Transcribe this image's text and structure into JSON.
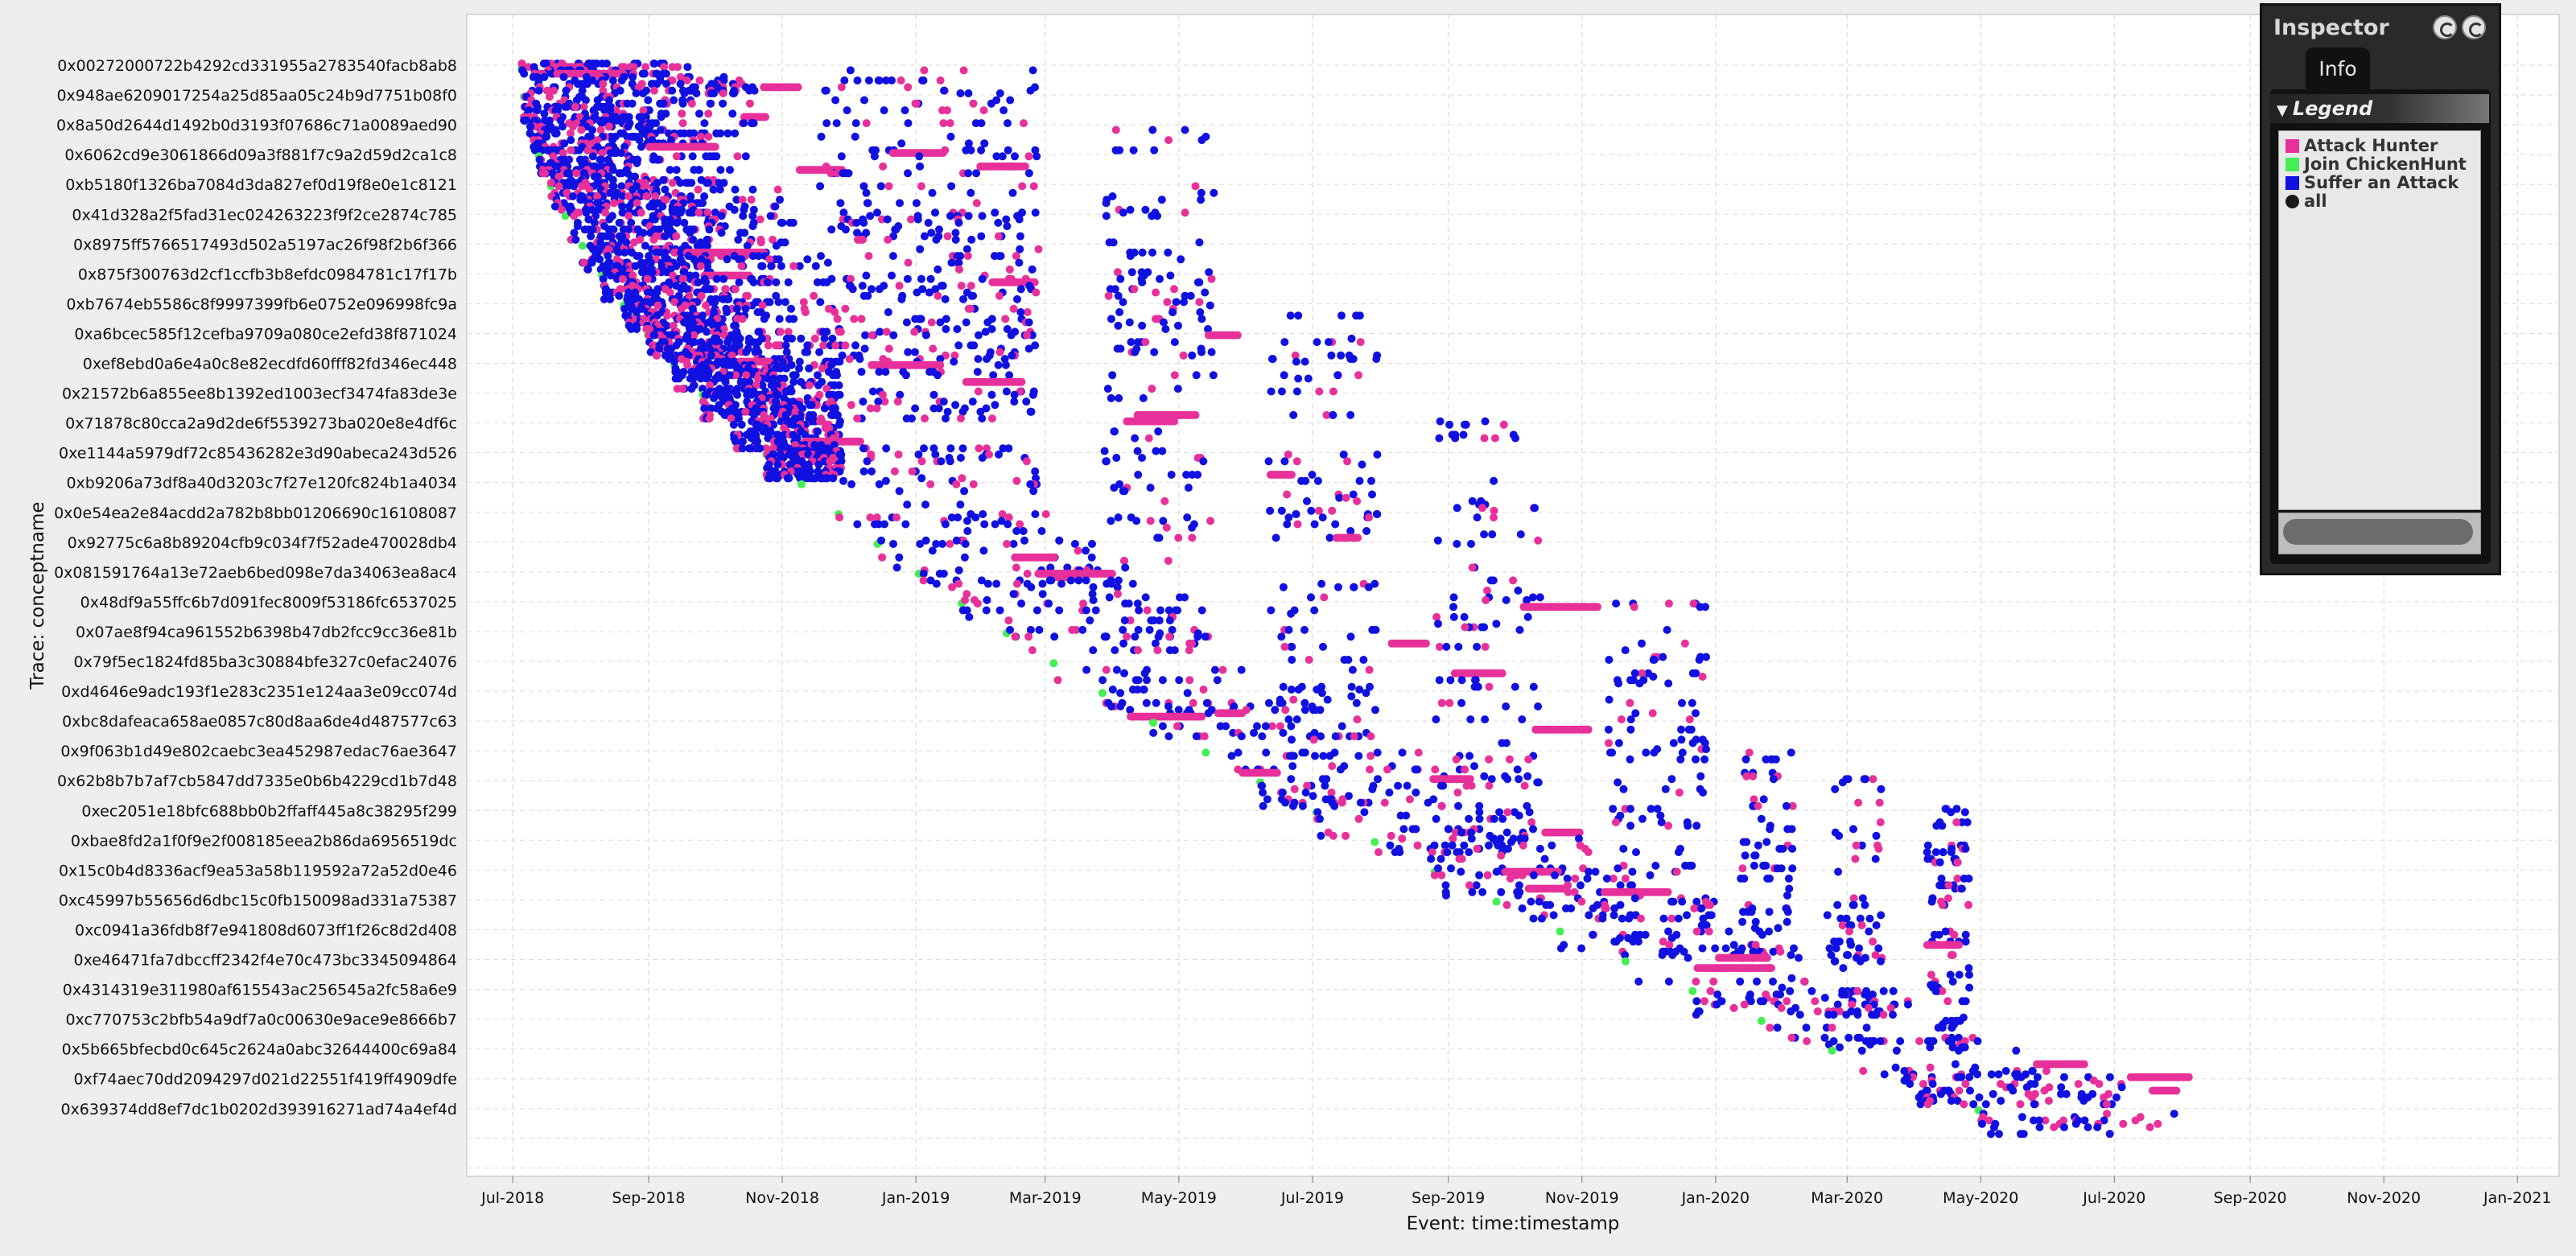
{
  "chart_data": {
    "type": "scatter",
    "title": "",
    "xlabel": "Event: time:timestamp",
    "ylabel": "Trace: conceptname",
    "x_tick_labels": [
      "Jul-2018",
      "Sep-2018",
      "Nov-2018",
      "Jan-2019",
      "Mar-2019",
      "May-2019",
      "Jul-2019",
      "Sep-2019",
      "Nov-2019",
      "Jan-2020",
      "Mar-2020",
      "May-2020",
      "Jul-2020",
      "Sep-2020",
      "Nov-2020",
      "Jan-2021"
    ],
    "x_range": [
      "2018-06-10",
      "2021-01-20"
    ],
    "grid": true,
    "legend_position": "top-right",
    "traces": [
      "0x00272000722b4292cd331955a2783540facb8ab8",
      "0x948ae6209017254a25d85aa05c24b9d7751b08f0",
      "0x8a50d2644d1492b0d3193f07686c71a0089aed90",
      "0x6062cd9e3061866d09a3f881f7c9a2d59d2ca1c8",
      "0xb5180f1326ba7084d3da827ef0d19f8e0e1c8121",
      "0x41d328a2f5fad31ec024263223f9f2ce2874c785",
      "0x8975ff5766517493d502a5197ac26f98f2b6f366",
      "0x875f300763d2cf1ccfb3b8efdc0984781c17f17b",
      "0xb7674eb5586c8f9997399fb6e0752e096998fc9a",
      "0xa6bcec585f12cefba9709a080ce2efd38f871024",
      "0xef8ebd0a6e4a0c8e82ecdfd60fff82fd346ec448",
      "0x21572b6a855ee8b1392ed1003ecf3474fa83de3e",
      "0x71878c80cca2a9d2de6f5539273ba020e8e4df6c",
      "0xe1144a5979df72c85436282e3d90abeca243d526",
      "0xb9206a73df8a40d3203c7f27e120fc824b1a4034",
      "0x0e54ea2e84acdd2a782b8bb01206690c16108087",
      "0x92775c6a8b89204cfb9c034f7f52ade470028db4",
      "0x081591764a13e72aeb6bed098e7da34063ea8ac4",
      "0x48df9a55ffc6b7d091fec8009f53186fc6537025",
      "0x07ae8f94ca961552b6398b47db2fcc9cc36e81b",
      "0x79f5ec1824fd85ba3c30884bfe327c0efac24076",
      "0xd4646e9adc193f1e283c2351e124aa3e09cc074d",
      "0xbc8dafeaca658ae0857c80d8aa6de4d487577c63",
      "0x9f063b1d49e802caebc3ea452987edac76ae3647",
      "0x62b8b7b7af7cb5847dd7335e0b6b4229cd1b7d48",
      "0xec2051e18bfc688bb0b2ffaff445a8c38295f299",
      "0xbae8fd2a1f0f9e2f008185eea2b86da6956519dc",
      "0x15c0b4d8336acf9ea53a58b119592a72a52d0e46",
      "0xc45997b55656d6dbc15c0fb150098ad331a75387",
      "0xc0941a36fdb8f7e941808d6073ff1f26c8d2d408",
      "0xe46471fa7dbccff2342f4e70c473bc3345094864",
      "0x4314319e311980af615543ac256545a2fc58a6e9",
      "0xc770753c2bfb54a9df7a0c00630e9ace9e8666b7",
      "0x5b665bfecbd0c645c2624a0abc32644400c69a84",
      "0xf74aec70dd2094297d021d22551f419ff4909dfe",
      "0x639374dd8ef7dc1b0202d393916271ad74a4ef4d"
    ],
    "series": [
      {
        "name": "Attack Hunter",
        "color": "#e8309a"
      },
      {
        "name": "Join ChickenHunt",
        "color": "#44ee55"
      },
      {
        "name": "Suffer an Attack",
        "color": "#1010e0"
      },
      {
        "name": "all",
        "color": "#1a1a1a"
      }
    ]
  },
  "inspector": {
    "title": "Inspector",
    "tab": "Info",
    "legend_header": "Legend"
  }
}
